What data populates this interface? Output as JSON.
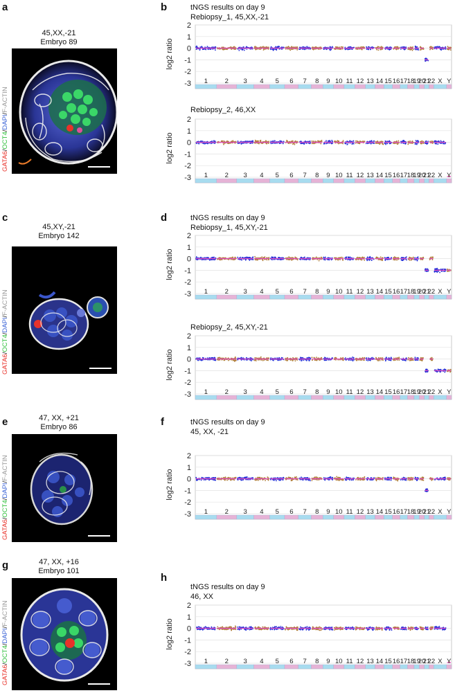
{
  "colors": {
    "gata6": "#e8322a",
    "oct4": "#2fbf3a",
    "dapi": "#3a63d6",
    "factin": "#9a9a9a",
    "dots_a": "#2530d8",
    "dots_b": "#b07c38",
    "segment": "#e050c0",
    "chrom_a": "#a8dcef",
    "chrom_b": "#e6b3d6"
  },
  "stain": {
    "gata6": "GATA6",
    "sep1": "/",
    "oct4": "OCT4",
    "sep2": "/",
    "dapi": "DAPI",
    "sep3": "/",
    "factin": "F-ACTIN"
  },
  "panels": {
    "a": {
      "letter": "a",
      "karyotype": "45,XX,-21",
      "embryo": "Embryo 89"
    },
    "b": {
      "letter": "b",
      "header": "tNGS results on day 9",
      "plot1_title": "Rebiopsy_1, 45,XX,-21",
      "plot2_title": "Rebiopsy_2, 46,XX"
    },
    "c": {
      "letter": "c",
      "karyotype": "45,XY,-21",
      "embryo": "Embryo 142"
    },
    "d": {
      "letter": "d",
      "header": "tNGS results on day 9",
      "plot1_title": "Rebiopsy_1, 45,XY,-21",
      "plot2_title": "Rebiopsy_2, 45,XY,-21"
    },
    "e": {
      "letter": "e",
      "karyotype": "47, XX, +21",
      "embryo": "Embryo 86"
    },
    "f": {
      "letter": "f",
      "header": "tNGS results on day 9",
      "plot1_title": "45, XX, -21"
    },
    "g": {
      "letter": "g",
      "karyotype": "47, XX, +16",
      "embryo": "Embryo 101"
    },
    "h": {
      "letter": "h",
      "header": "tNGS results on day 9",
      "plot1_title": "46, XX"
    }
  },
  "chart_data": [
    {
      "type": "scatter",
      "title": "Rebiopsy_1, 45,XX,-21",
      "ylabel": "log2 ratio",
      "ylim": [
        -3,
        2
      ],
      "yticks": [
        "2",
        "1",
        "0",
        "-1",
        "-2",
        "-3"
      ],
      "categories": [
        "1",
        "2",
        "3",
        "4",
        "5",
        "6",
        "7",
        "8",
        "9",
        "10",
        "11",
        "12",
        "13",
        "14",
        "15",
        "16",
        "17",
        "18",
        "19",
        "20",
        "21",
        "22",
        "X",
        "Y"
      ],
      "values": [
        0,
        0,
        0,
        0,
        0,
        0,
        0,
        0,
        0,
        0,
        0,
        0,
        0,
        0,
        0,
        0,
        0,
        0,
        0,
        0,
        -1,
        0,
        0,
        0
      ]
    },
    {
      "type": "scatter",
      "title": "Rebiopsy_2, 46,XX",
      "ylabel": "log2 ratio",
      "ylim": [
        -3,
        2
      ],
      "yticks": [
        "2",
        "1",
        "0",
        "-1",
        "-2",
        "-3"
      ],
      "categories": [
        "1",
        "2",
        "3",
        "4",
        "5",
        "6",
        "7",
        "8",
        "9",
        "10",
        "11",
        "12",
        "13",
        "14",
        "15",
        "16",
        "17",
        "18",
        "19",
        "20",
        "21",
        "22",
        "X",
        "Y"
      ],
      "values": [
        0,
        0,
        0,
        0,
        0,
        0,
        0,
        0,
        0,
        0,
        0,
        0,
        0,
        0,
        0,
        0,
        0,
        0,
        0,
        0,
        0,
        0,
        0,
        -3
      ]
    },
    {
      "type": "scatter",
      "title": "Rebiopsy_1, 45,XY,-21",
      "ylabel": "log2 ratio",
      "ylim": [
        -3,
        2
      ],
      "yticks": [
        "2",
        "1",
        "0",
        "-1",
        "-2",
        "-3"
      ],
      "categories": [
        "1",
        "2",
        "3",
        "4",
        "5",
        "6",
        "7",
        "8",
        "9",
        "10",
        "11",
        "12",
        "13",
        "14",
        "15",
        "16",
        "17",
        "18",
        "19",
        "20",
        "21",
        "22",
        "X",
        "Y"
      ],
      "values": [
        0,
        0,
        0,
        0,
        0,
        0,
        0,
        0,
        0,
        0,
        0,
        0,
        0,
        0,
        0,
        0,
        0,
        0,
        0,
        0,
        -1,
        0,
        -1,
        -1
      ]
    },
    {
      "type": "scatter",
      "title": "Rebiopsy_2, 45,XY,-21",
      "ylabel": "log2 ratio",
      "ylim": [
        -3,
        2
      ],
      "yticks": [
        "2",
        "1",
        "0",
        "-1",
        "-2",
        "-3"
      ],
      "categories": [
        "1",
        "2",
        "3",
        "4",
        "5",
        "6",
        "7",
        "8",
        "9",
        "10",
        "11",
        "12",
        "13",
        "14",
        "15",
        "16",
        "17",
        "18",
        "19",
        "20",
        "21",
        "22",
        "X",
        "Y"
      ],
      "values": [
        0,
        0,
        0,
        0,
        0,
        0,
        0,
        0,
        0,
        0,
        0,
        0,
        0,
        0,
        0,
        0,
        0,
        0,
        0,
        0,
        -1,
        0,
        -1,
        -1
      ]
    },
    {
      "type": "scatter",
      "title": "45, XX, -21",
      "ylabel": "log2 ratio",
      "ylim": [
        -3,
        2
      ],
      "yticks": [
        "2",
        "1",
        "0",
        "-1",
        "-2",
        "-3"
      ],
      "categories": [
        "1",
        "2",
        "3",
        "4",
        "5",
        "6",
        "7",
        "8",
        "9",
        "10",
        "11",
        "12",
        "13",
        "14",
        "15",
        "16",
        "17",
        "18",
        "19",
        "20",
        "21",
        "22",
        "X",
        "Y"
      ],
      "values": [
        0,
        0,
        0,
        0,
        0,
        0,
        0,
        0,
        0,
        0,
        0,
        0,
        0,
        0,
        0,
        0,
        0,
        0,
        0,
        0,
        -1,
        0,
        0,
        0
      ]
    },
    {
      "type": "scatter",
      "title": "46, XX",
      "ylabel": "log2 ratio",
      "ylim": [
        -3,
        2
      ],
      "yticks": [
        "2",
        "1",
        "0",
        "-1",
        "-2",
        "-3"
      ],
      "categories": [
        "1",
        "2",
        "3",
        "4",
        "5",
        "6",
        "7",
        "8",
        "9",
        "10",
        "11",
        "12",
        "13",
        "14",
        "15",
        "16",
        "17",
        "18",
        "19",
        "20",
        "21",
        "22",
        "X",
        "Y"
      ],
      "values": [
        0,
        0,
        0,
        0,
        0,
        0,
        0,
        0,
        0,
        0,
        0,
        0,
        0,
        0,
        0,
        0,
        0,
        0,
        0,
        0,
        0,
        0,
        0,
        -3
      ]
    }
  ]
}
